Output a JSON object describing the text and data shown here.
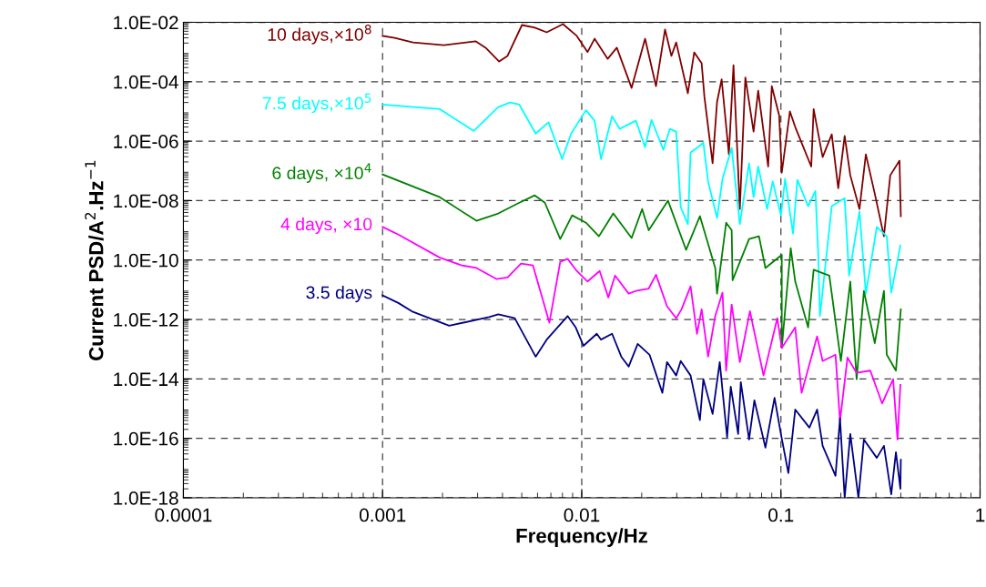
{
  "chart_data": {
    "type": "line",
    "xlabel": "Frequency/Hz",
    "ylabel": "Current PSD/A$^{2}$.Hz$^{−1}$",
    "log": "xy",
    "grid": true,
    "line_style": "solid",
    "marker": "none",
    "xlim": [
      0.0001,
      1
    ],
    "xticks": [
      0.0001,
      0.001,
      0.01,
      0.1,
      1
    ],
    "ylim": [
      1e-18,
      0.01
    ],
    "yticks": [
      {
        "value": 1e-18,
        "label": "1.0E-18"
      },
      {
        "value": 1e-16,
        "label": "1.0E-16"
      },
      {
        "value": 1e-14,
        "label": "1.0E-14"
      },
      {
        "value": 1e-12,
        "label": "1.0E-12"
      },
      {
        "value": 1e-10,
        "label": "1.0E-10"
      },
      {
        "value": 1e-08,
        "label": "1.0E-08"
      },
      {
        "value": 1e-06,
        "label": "1.0E-06"
      },
      {
        "value": 0.0001,
        "label": "1.0E-04"
      },
      {
        "value": 0.01,
        "label": "1.0E-02"
      }
    ],
    "series": [
      {
        "name": "10 days,×10$^{8}$",
        "color": "#800000",
        "x": [
          0.001,
          0.00115,
          0.00142,
          0.00203,
          0.00293,
          0.00329,
          0.00385,
          0.00424,
          0.00501,
          0.00581,
          0.00667,
          0.00805,
          0.00944,
          0.0107,
          0.0116,
          0.0135,
          0.015,
          0.0178,
          0.0208,
          0.0236,
          0.0262,
          0.0282,
          0.0298,
          0.0341,
          0.0367,
          0.04,
          0.0413,
          0.0454,
          0.0478,
          0.0504,
          0.0548,
          0.0578,
          0.0622,
          0.0663,
          0.0729,
          0.0769,
          0.0863,
          0.09,
          0.098,
          0.101,
          0.111,
          0.118,
          0.142,
          0.146,
          0.162,
          0.18,
          0.194,
          0.209,
          0.223,
          0.248,
          0.267,
          0.296,
          0.329,
          0.354,
          0.394,
          0.4
        ],
        "values": [
          0.0035,
          0.003,
          0.0021,
          0.0017,
          0.0023,
          0.0014,
          0.00048,
          0.00074,
          0.0081,
          0.0066,
          0.0046,
          0.0087,
          0.0035,
          0.001,
          0.0028,
          0.00059,
          0.0014,
          6.2e-05,
          0.0028,
          7.1e-05,
          0.0057,
          0.00074,
          0.0021,
          4.1e-05,
          0.00097,
          0.00042,
          3.1e-05,
          1.8e-07,
          2.1e-05,
          0.00012,
          3.6e-07,
          0.00036,
          5.2e-09,
          0.00014,
          2.1e-06,
          5e-05,
          1.4e-07,
          7.1e-05,
          7.4e-06,
          8.7e-08,
          1e-05,
          3e-06,
          1.4e-07,
          1.2e-05,
          2.9e-07,
          1.7e-06,
          2.6e-08,
          1.5e-06,
          7.1e-08,
          5.2e-09,
          3.6e-07,
          1.7e-08,
          6.3e-10,
          7.1e-08,
          2.2e-07,
          3e-09
        ]
      },
      {
        "name": "7.5 days,×10$^{5}$",
        "color": "#00ffff",
        "x": [
          0.001,
          0.00194,
          0.00287,
          0.00381,
          0.00437,
          0.00486,
          0.00587,
          0.00681,
          0.00797,
          0.00885,
          0.0105,
          0.0116,
          0.0125,
          0.0142,
          0.0155,
          0.0187,
          0.0208,
          0.0224,
          0.0257,
          0.0277,
          0.0298,
          0.0314,
          0.0341,
          0.0352,
          0.0379,
          0.0408,
          0.0431,
          0.0478,
          0.0509,
          0.0566,
          0.0622,
          0.0692,
          0.0729,
          0.0769,
          0.0853,
          0.091,
          0.1,
          0.105,
          0.115,
          0.121,
          0.137,
          0.149,
          0.154,
          0.157,
          0.18,
          0.209,
          0.22,
          0.248,
          0.267,
          0.303,
          0.34,
          0.358,
          0.398
        ],
        "values": [
          1.7e-05,
          1.2e-05,
          2.2e-06,
          1.4e-05,
          2e-05,
          1.7e-05,
          1.8e-06,
          4.3e-06,
          2.5e-07,
          1.8e-06,
          1.1e-05,
          4.9e-06,
          2.5e-07,
          6.9e-06,
          2.6e-06,
          4.9e-06,
          6.3e-07,
          5.2e-06,
          5.1e-07,
          2.6e-06,
          2.1e-06,
          6e-09,
          1.6e-09,
          4.2e-07,
          5.9e-07,
          8.9e-07,
          4.4e-08,
          2.6e-09,
          5.4e-08,
          5.9e-07,
          1.6e-09,
          1.8e-07,
          1.3e-08,
          1.4e-07,
          5.2e-09,
          4.4e-08,
          3.2e-09,
          5.4e-08,
          7.8e-10,
          5e-08,
          6.5e-09,
          2.1e-08,
          1.5e-10,
          1.3e-12,
          6.5e-09,
          1.2e-08,
          3e-11,
          4.3e-09,
          7.4e-12,
          1.3e-09,
          6.3e-10,
          8e-12,
          3.1e-10
        ]
      },
      {
        "name": "6 days, ×10$^{4}$",
        "color": "#008000",
        "x": [
          0.001,
          0.00194,
          0.00296,
          0.00381,
          0.00486,
          0.00581,
          0.00653,
          0.0078,
          0.00895,
          0.0105,
          0.0122,
          0.0144,
          0.0178,
          0.0201,
          0.0217,
          0.0271,
          0.0334,
          0.0392,
          0.0468,
          0.0478,
          0.0531,
          0.0566,
          0.0572,
          0.0692,
          0.0776,
          0.0836,
          0.101,
          0.101,
          0.112,
          0.118,
          0.137,
          0.146,
          0.175,
          0.2,
          0.223,
          0.24,
          0.261,
          0.296,
          0.329,
          0.34,
          0.378,
          0.4
        ],
        "values": [
          7.6e-08,
          1.3e-08,
          2.1e-09,
          3.7e-09,
          8.5e-09,
          1.5e-08,
          8.5e-09,
          5.1e-10,
          3.2e-09,
          1.8e-09,
          6.3e-10,
          3.7e-09,
          5.5e-10,
          5.2e-09,
          1e-09,
          1e-08,
          2.2e-10,
          3e-09,
          5.4e-11,
          7.4e-12,
          1.8e-09,
          1e-09,
          2.1e-11,
          5.1e-10,
          6.3e-10,
          5.4e-11,
          1.5e-10,
          1.1e-13,
          2.5e-10,
          1.9e-11,
          5.4e-13,
          4.7e-11,
          3e-11,
          4e-14,
          1.9e-11,
          9.8e-15,
          9.1e-12,
          1.6e-13,
          9.1e-12,
          6.5e-14,
          1.9e-14,
          2.2e-12
        ]
      },
      {
        "name": "4 days, ×10",
        "color": "#ff00ff",
        "x": [
          0.001,
          0.0012,
          0.00194,
          0.0025,
          0.00296,
          0.00373,
          0.00424,
          0.00496,
          0.00569,
          0.00688,
          0.0078,
          0.00849,
          0.00944,
          0.0107,
          0.0123,
          0.0136,
          0.0147,
          0.0172,
          0.0187,
          0.0217,
          0.0236,
          0.0268,
          0.0298,
          0.0317,
          0.0352,
          0.0379,
          0.04,
          0.0431,
          0.0468,
          0.0509,
          0.0531,
          0.0566,
          0.0622,
          0.0699,
          0.0818,
          0.0959,
          0.101,
          0.118,
          0.127,
          0.152,
          0.162,
          0.188,
          0.198,
          0.216,
          0.24,
          0.281,
          0.322,
          0.366,
          0.385,
          0.398
        ],
        "values": [
          1.3e-09,
          7.2e-10,
          1.2e-10,
          6.6e-11,
          5.4e-11,
          2.3e-11,
          2.6e-11,
          7.6e-11,
          6.6e-11,
          7.8e-13,
          8.7e-11,
          1.1e-10,
          4.3e-11,
          1.9e-11,
          4.3e-11,
          5.5e-12,
          3e-11,
          7.4e-12,
          9.1e-12,
          1.1e-11,
          3.2e-11,
          2.8e-12,
          1.1e-12,
          2.2e-12,
          1.3e-11,
          3.3e-13,
          2.2e-12,
          5.6e-14,
          1.3e-12,
          8e-12,
          1.9e-14,
          3.2e-12,
          3.7e-14,
          1.9e-12,
          1.3e-14,
          1.1e-12,
          1.1e-13,
          5.4e-13,
          3.4e-15,
          2.7e-13,
          4e-14,
          6.5e-14,
          3.8e-16,
          5.2e-14,
          1.6e-14,
          1.9e-14,
          1.5e-15,
          9.8e-15,
          9.1e-17,
          6.3e-15
        ]
      },
      {
        "name": "3.5 days",
        "color": "#000080",
        "x": [
          0.001,
          0.0012,
          0.00142,
          0.00216,
          0.00343,
          0.00381,
          0.00461,
          0.00587,
          0.00667,
          0.00849,
          0.00933,
          0.0102,
          0.0119,
          0.0125,
          0.0142,
          0.0158,
          0.0172,
          0.0191,
          0.0219,
          0.0254,
          0.0268,
          0.0298,
          0.0314,
          0.0352,
          0.0392,
          0.0408,
          0.0454,
          0.0493,
          0.0537,
          0.056,
          0.061,
          0.0629,
          0.0692,
          0.0736,
          0.0836,
          0.0929,
          0.1,
          0.109,
          0.118,
          0.139,
          0.152,
          0.162,
          0.188,
          0.198,
          0.209,
          0.223,
          0.245,
          0.261,
          0.303,
          0.329,
          0.358,
          0.378,
          0.398,
          0.4
        ],
        "values": [
          6.5e-12,
          3.6e-12,
          1.8e-12,
          6.2e-13,
          1.2e-12,
          1.5e-12,
          1.1e-12,
          5.6e-14,
          2.1e-13,
          1.3e-12,
          5.4e-13,
          1.3e-13,
          3.3e-13,
          2.1e-13,
          3.3e-13,
          5.6e-14,
          2.6e-14,
          1.5e-13,
          6.5e-14,
          3.4e-15,
          3.7e-14,
          1.3e-14,
          4e-14,
          1.3e-14,
          4.1e-16,
          9.8e-15,
          6.6e-16,
          3.7e-14,
          1.1e-16,
          5.5e-15,
          1.4e-16,
          7.8e-15,
          9.1e-17,
          1.9e-15,
          4.9e-17,
          2.3e-15,
          1.4e-16,
          6.8e-18,
          9.3e-16,
          2.3e-16,
          9.3e-16,
          5.6e-17,
          5.5e-18,
          4.7e-16,
          1e-18,
          1.4e-16,
          1e-18,
          9.1e-17,
          2.2e-17,
          5.6e-17,
          1.3e-18,
          3.4e-17,
          2e-18,
          1.9e-17
        ]
      }
    ]
  }
}
